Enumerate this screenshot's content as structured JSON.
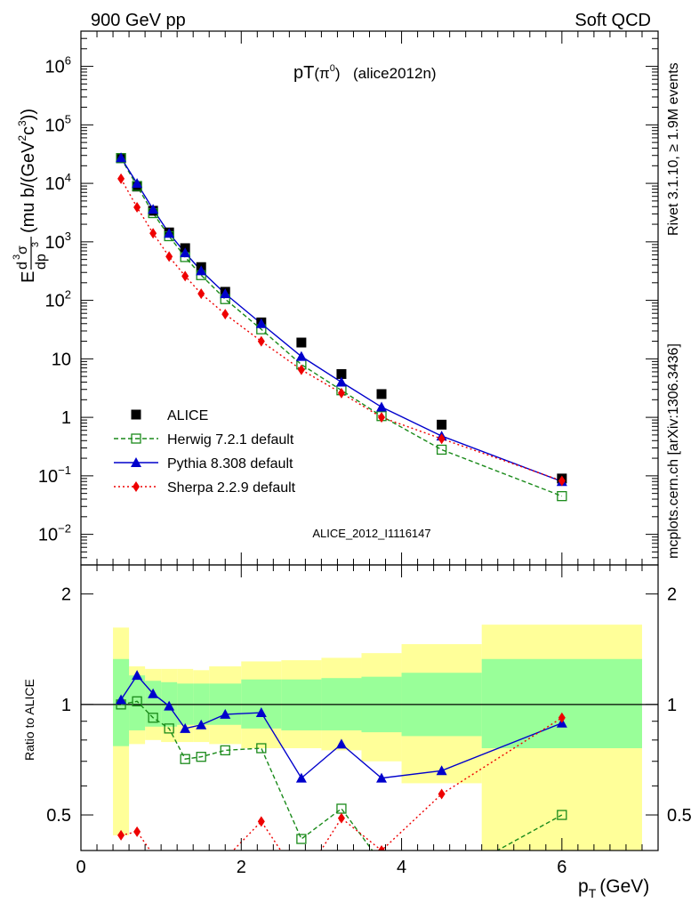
{
  "header": {
    "left": "900 GeV pp",
    "right": "Soft QCD"
  },
  "main_panel": {
    "title_main": "pT",
    "title_particle": "(π",
    "title_sup": "0",
    "title_close": ")",
    "title_tag": "(alice2012n)",
    "watermark": "ALICE_2012_I1116147",
    "ylabel": {
      "e": "E",
      "d3": "d",
      "d3sup": "3",
      "sigma": "σ",
      "dp3": "dp",
      "dp3sup": "3",
      "units": "(mu b/(GeV",
      "units_sup2": "2",
      "units_c": "c",
      "units_sup3": "3",
      "units_close": "))"
    },
    "yticks": [
      {
        "value": 0.01,
        "base": "10",
        "exp": "−2"
      },
      {
        "value": 0.1,
        "base": "10",
        "exp": "−1"
      },
      {
        "value": 1,
        "base": "1",
        "exp": ""
      },
      {
        "value": 10,
        "base": "10",
        "exp": ""
      },
      {
        "value": 100,
        "base": "10",
        "exp": "2"
      },
      {
        "value": 1000,
        "base": "10",
        "exp": "3"
      },
      {
        "value": 10000,
        "base": "10",
        "exp": "4"
      },
      {
        "value": 100000,
        "base": "10",
        "exp": "5"
      },
      {
        "value": 1000000,
        "base": "10",
        "exp": "6"
      }
    ]
  },
  "ratio_panel": {
    "ylabel": "Ratio to ALICE",
    "yticks": [
      "0.5",
      "1",
      "2"
    ],
    "ytick_values": [
      0.5,
      1,
      2
    ]
  },
  "xaxis": {
    "label": "p",
    "label_sub": "T",
    "label_units": "(GeV)",
    "ticks": [
      "0",
      "2",
      "4",
      "6"
    ],
    "tick_values": [
      0,
      2,
      4,
      6
    ]
  },
  "side_labels": {
    "rivet": "Rivet 3.1.10, ≥ 1.9M events",
    "mcplots": "mcplots.cern.ch [arXiv:1306.3436]"
  },
  "legend": [
    {
      "key": "alice",
      "label": "ALICE"
    },
    {
      "key": "herwig",
      "label": "Herwig 7.2.1 default"
    },
    {
      "key": "pythia",
      "label": "Pythia 8.308 default"
    },
    {
      "key": "sherpa",
      "label": "Sherpa 2.2.9 default"
    }
  ],
  "colors": {
    "alice": "#000000",
    "herwig": "#1a8a1a",
    "pythia": "#0000cc",
    "sherpa": "#ee0000",
    "band_outer": "#ffff99",
    "band_inner": "#99ff99",
    "watermark": "#999999",
    "side_text": "#888888"
  },
  "chart_data": {
    "type": "scatter",
    "x_range": [
      0,
      7.2
    ],
    "y_log": true,
    "y_range": [
      0.003,
      4000000
    ],
    "ratio_range": [
      0.4,
      2.4
    ],
    "ratio_log": true,
    "x_bins": [
      0.4,
      0.6,
      0.8,
      1.0,
      1.2,
      1.4,
      1.6,
      2.0,
      2.5,
      3.0,
      3.5,
      4.0,
      5.0,
      7.0
    ],
    "x": [
      0.5,
      0.7,
      0.9,
      1.1,
      1.3,
      1.5,
      1.8,
      2.25,
      2.75,
      3.25,
      3.75,
      4.5,
      6.0
    ],
    "series": [
      {
        "name": "ALICE",
        "key": "alice",
        "values": [
          27000,
          8800,
          3400,
          1450,
          780,
          370,
          140,
          42,
          19,
          5.5,
          2.5,
          0.75,
          0.09
        ]
      },
      {
        "name": "Herwig 7.2.1 default",
        "key": "herwig",
        "values": [
          27000,
          9000,
          3100,
          1250,
          550,
          270,
          105,
          32,
          8.0,
          2.9,
          1.05,
          0.28,
          0.045
        ],
        "ratio": [
          1.0,
          1.02,
          0.92,
          0.86,
          0.71,
          0.72,
          0.75,
          0.76,
          0.43,
          0.52,
          0.37,
          0.33,
          0.5
        ]
      },
      {
        "name": "Pythia 8.308 default",
        "key": "pythia",
        "values": [
          27500,
          10000,
          3600,
          1400,
          650,
          320,
          130,
          40,
          11,
          4.0,
          1.5,
          0.48,
          0.08
        ],
        "ratio": [
          1.03,
          1.2,
          1.07,
          0.99,
          0.86,
          0.88,
          0.94,
          0.95,
          0.63,
          0.78,
          0.63,
          0.66,
          0.89
        ]
      },
      {
        "name": "Sherpa 2.2.9 default",
        "key": "sherpa",
        "values": [
          12000,
          3900,
          1400,
          560,
          260,
          130,
          58,
          20,
          6.5,
          2.6,
          1.0,
          0.43,
          0.082
        ],
        "ratio": [
          0.44,
          0.45,
          0.39,
          0.34,
          0.33,
          0.35,
          0.38,
          0.48,
          0.33,
          0.49,
          0.4,
          0.57,
          0.92
        ]
      }
    ],
    "band_inner": [
      [
        0.77,
        1.33
      ],
      [
        0.85,
        1.2
      ],
      [
        0.87,
        1.16
      ],
      [
        0.87,
        1.15
      ],
      [
        0.88,
        1.14
      ],
      [
        0.88,
        1.14
      ],
      [
        0.88,
        1.14
      ],
      [
        0.86,
        1.17
      ],
      [
        0.85,
        1.17
      ],
      [
        0.85,
        1.18
      ],
      [
        0.84,
        1.19
      ],
      [
        0.82,
        1.22
      ],
      [
        0.76,
        1.33
      ]
    ],
    "band_outer": [
      [
        0.44,
        1.62
      ],
      [
        0.78,
        1.27
      ],
      [
        0.8,
        1.25
      ],
      [
        0.79,
        1.25
      ],
      [
        0.79,
        1.25
      ],
      [
        0.79,
        1.24
      ],
      [
        0.78,
        1.27
      ],
      [
        0.76,
        1.31
      ],
      [
        0.76,
        1.32
      ],
      [
        0.75,
        1.34
      ],
      [
        0.7,
        1.38
      ],
      [
        0.61,
        1.46
      ],
      [
        0.38,
        1.65
      ]
    ]
  }
}
